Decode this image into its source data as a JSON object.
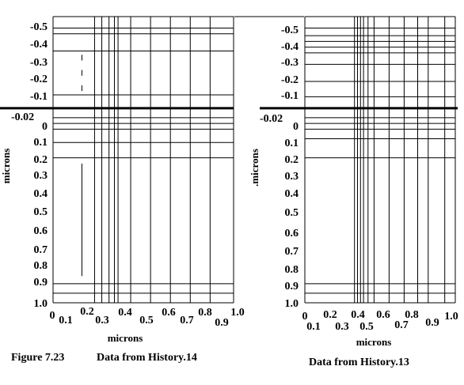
{
  "figure_label": "Figure 7.23",
  "chart_data": [
    {
      "type": "scatter",
      "title": "Data from History.14",
      "xlabel": "microns",
      "ylabel": "microns",
      "x_tick_labels": [
        "0",
        "0.1",
        "0.2",
        "0.3",
        "0.4",
        "0.5",
        "0.6",
        "0.7",
        "0.8",
        "0.9",
        "1.0"
      ],
      "y_tick_labels": [
        "-0.5",
        "-0.4",
        "-0.3",
        "-0.2",
        "-0.1",
        "-0.02",
        "0",
        "0.1",
        "0.2",
        "0.3",
        "0.4",
        "0.5",
        "0.6",
        "0.7",
        "0.8",
        "0.9",
        "1.0"
      ],
      "xlim": [
        0,
        1.0
      ],
      "ylim": [
        -0.5,
        1.0
      ],
      "y_inverted": true,
      "surface_y": -0.02,
      "x_grid": [
        0,
        0.23,
        0.27,
        0.31,
        0.34,
        0.36,
        0.43,
        0.54,
        0.65,
        0.76,
        0.87,
        1.0
      ],
      "y_grid": [
        -0.5,
        -0.44,
        -0.41,
        -0.32,
        -0.09,
        0.03,
        0.06,
        0.09,
        0.16,
        0.24,
        0.9,
        0.95,
        1.0
      ],
      "segments": [
        {
          "x": 0.16,
          "y": [
            -0.3,
            -0.27
          ],
          "style": "solid"
        },
        {
          "x": 0.16,
          "y": [
            -0.22,
            -0.19
          ],
          "style": "solid"
        },
        {
          "x": 0.16,
          "y": [
            -0.14,
            -0.11
          ],
          "style": "solid"
        },
        {
          "x": 0.16,
          "y": [
            0.27,
            0.86
          ],
          "style": "solid"
        }
      ]
    },
    {
      "type": "scatter",
      "title": "Data from History.13",
      "xlabel": "microns",
      "ylabel": ".microns",
      "x_tick_labels": [
        "0",
        "0.1",
        "0.2",
        "0.3",
        "0.4",
        "0.5",
        "0.6",
        "0.7",
        "0.8",
        "0.9",
        "1.0"
      ],
      "y_tick_labels": [
        "-0.5",
        "-0.4",
        "-0.3",
        "-0.2",
        "-0.1",
        "-0.02",
        "0",
        "0.1",
        "0.2",
        "0.3",
        "0.4",
        "0.5",
        "0.6",
        "0.7",
        "0.8",
        "0.9",
        "1.0"
      ],
      "xlim": [
        0,
        1.0
      ],
      "ylim": [
        -0.5,
        1.0
      ],
      "y_inverted": true,
      "surface_y": -0.02,
      "x_grid": [
        0,
        0.33,
        0.35,
        0.37,
        0.39,
        0.42,
        0.46,
        0.56,
        0.66,
        0.75,
        0.82,
        0.93,
        1.0
      ],
      "y_grid": [
        -0.5,
        -0.44,
        -0.4,
        -0.37,
        -0.34,
        -0.31,
        -0.25,
        -0.16,
        -0.08,
        0.03,
        0.06,
        0.09,
        0.14,
        0.24,
        0.9,
        0.95,
        1.0
      ],
      "segments": []
    }
  ]
}
